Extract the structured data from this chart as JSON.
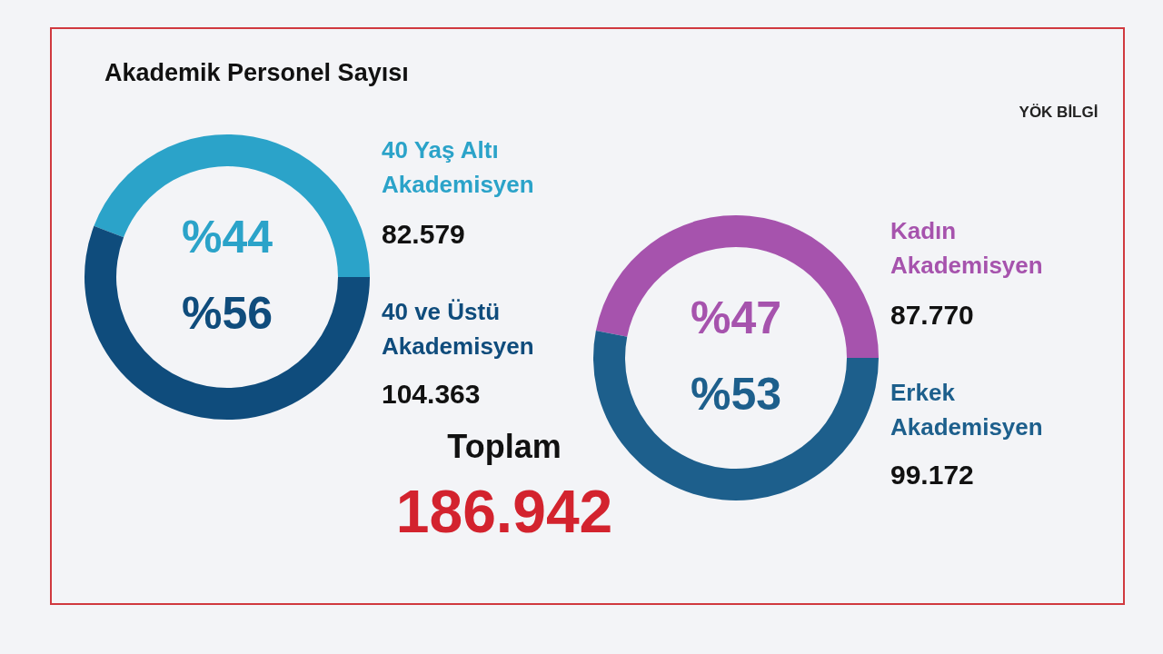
{
  "chart_data": [
    {
      "type": "donut",
      "title": "Akademik Personel Sayısı",
      "categories": [
        "40 Yaş Altı Akademisyen",
        "40 ve Üstü Akademisyen"
      ],
      "values": [
        82579,
        104363
      ],
      "value_labels": [
        "82.579",
        "104.363"
      ],
      "colors": [
        "#2ba3c9",
        "#0f4c7c"
      ],
      "annotations": [
        "%44",
        "%56"
      ],
      "legend": false
    },
    {
      "type": "donut",
      "categories": [
        "Kadın Akademisyen",
        "Erkek Akademisyen"
      ],
      "values": [
        87770,
        99172
      ],
      "value_labels": [
        "87.770",
        "99.172"
      ],
      "colors": [
        "#a653ad",
        "#1d5f8c"
      ],
      "annotations": [
        "%47",
        "%53",
        "YÖK BİLGİ"
      ],
      "legend": false
    },
    {
      "type": "other",
      "title": "Toplam",
      "annotations": [
        "186.942"
      ]
    }
  ]
}
